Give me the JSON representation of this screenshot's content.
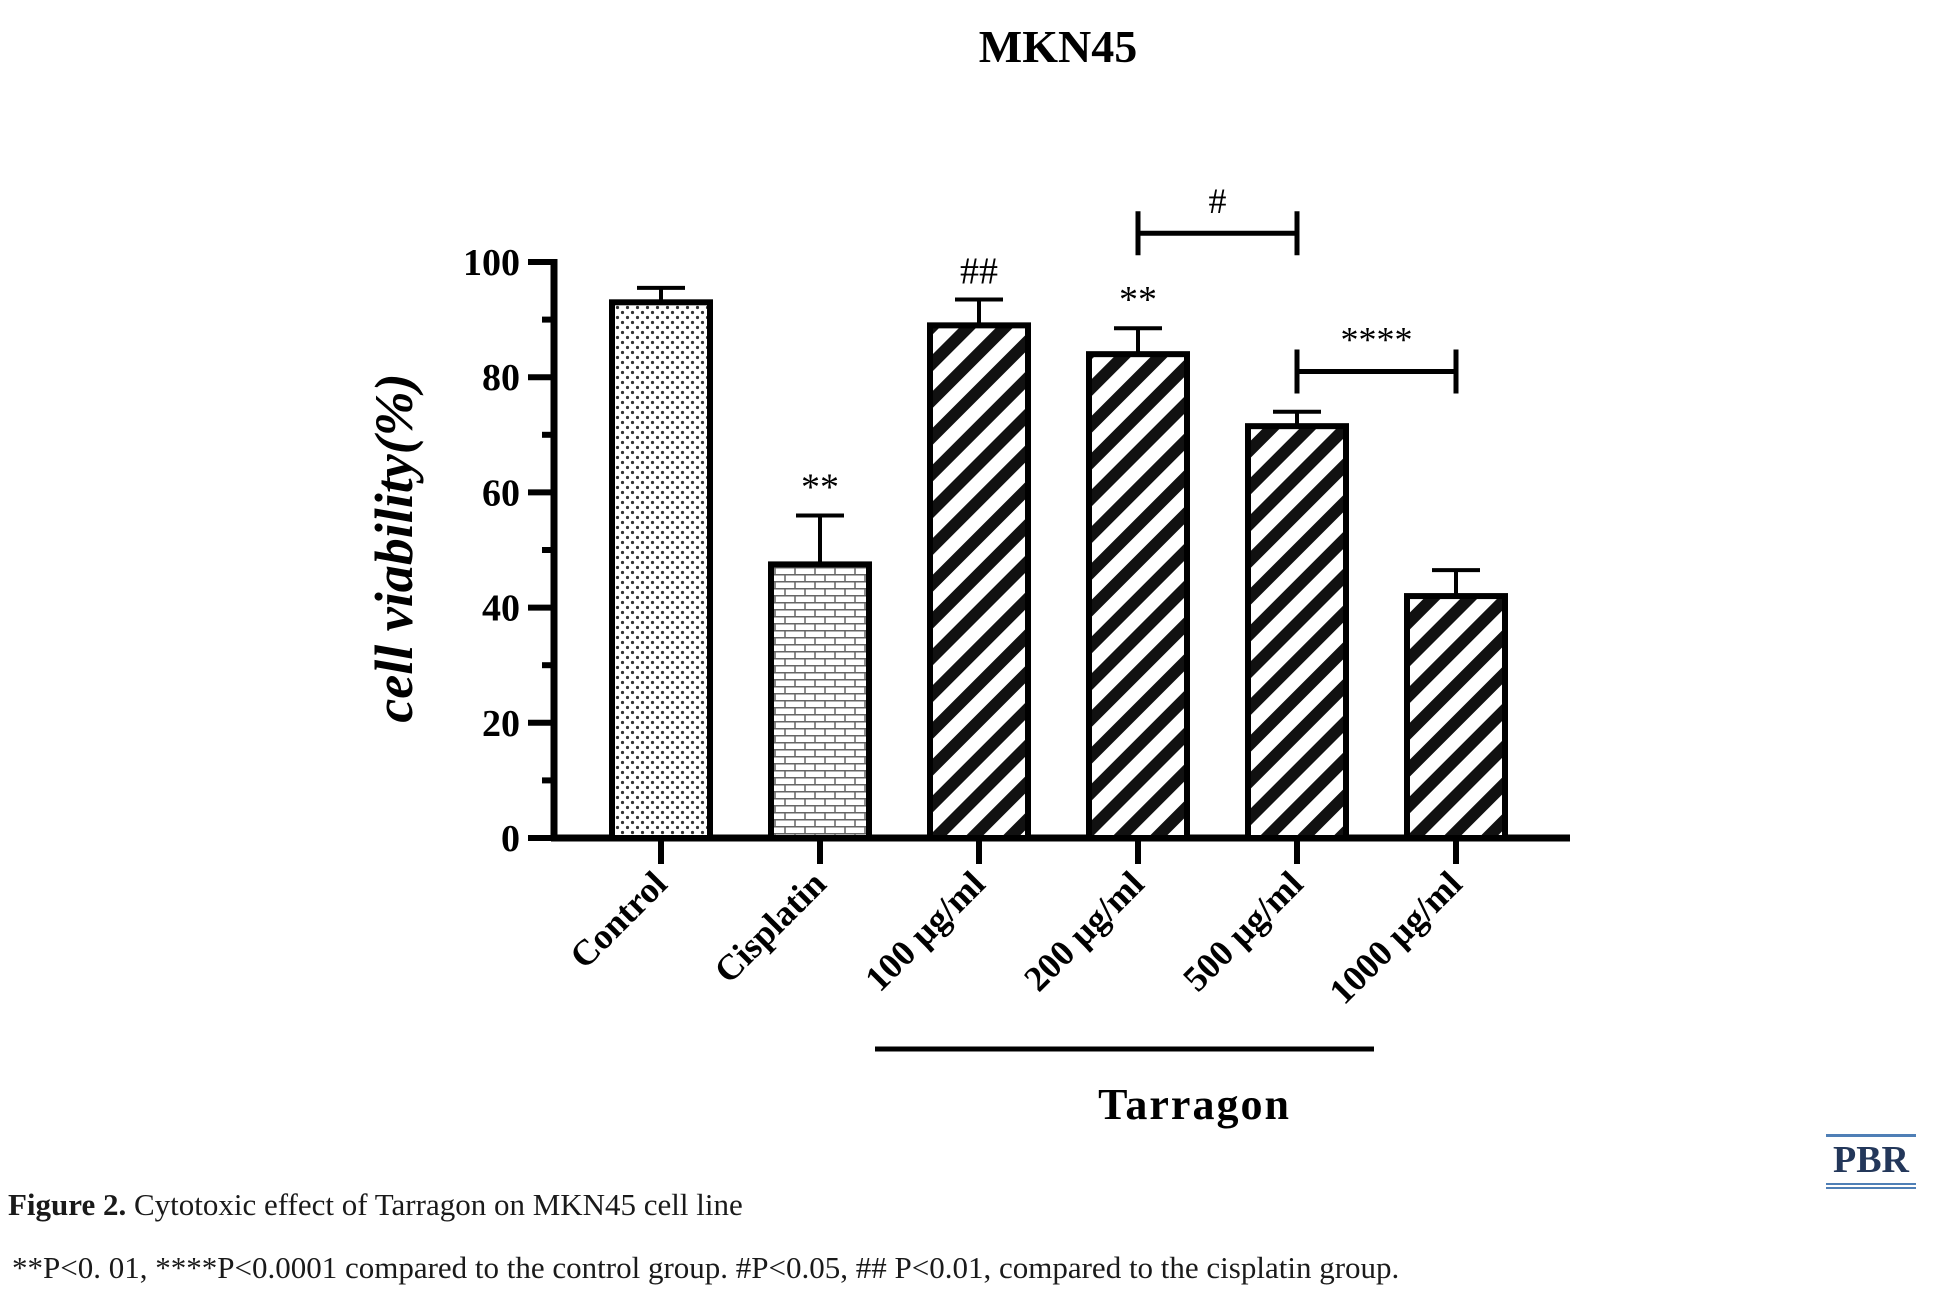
{
  "chart_data": {
    "type": "bar",
    "title": "MKN45",
    "ylabel": "cell viability(%)",
    "xlabel": "",
    "ylim": [
      0,
      100
    ],
    "yticks": [
      "0",
      "20",
      "40",
      "60",
      "80",
      "100"
    ],
    "categories": [
      "Control",
      "Cisplatin",
      "100 µg/ml",
      "200 µg/ml",
      "500 µg/ml",
      "1000 µg/ml"
    ],
    "values": [
      93,
      47.5,
      89,
      84,
      71.5,
      42
    ],
    "errors": [
      2.5,
      8.5,
      4.5,
      4.5,
      2.5,
      4.5
    ],
    "patterns": [
      "dots",
      "bricks",
      "diagonal",
      "diagonal",
      "diagonal",
      "diagonal"
    ],
    "bar_annotations": [
      {
        "category": "Cisplatin",
        "text": "**"
      },
      {
        "category": "100 µg/ml",
        "text": "##"
      },
      {
        "category": "200 µg/ml",
        "text": "**"
      }
    ],
    "brackets": [
      {
        "from": "200 µg/ml",
        "to": "500 µg/ml",
        "text": "#",
        "level": 105
      },
      {
        "from": "500 µg/ml",
        "to": "1000 µg/ml",
        "text": "****",
        "level": 81
      }
    ],
    "group_label": {
      "text": "Tarragon",
      "from": "100 µg/ml",
      "to": "1000 µg/ml"
    }
  },
  "caption": {
    "label": "Figure 2.",
    "text": " Cytotoxic effect of Tarragon on MKN45 cell line",
    "note": "**P<0. 01, ****P<0.0001 compared to the control group. #P<0.05, ## P<0.01, compared to the cisplatin group."
  },
  "logo": {
    "text": "PBR",
    "color": "#4f7fb6"
  }
}
